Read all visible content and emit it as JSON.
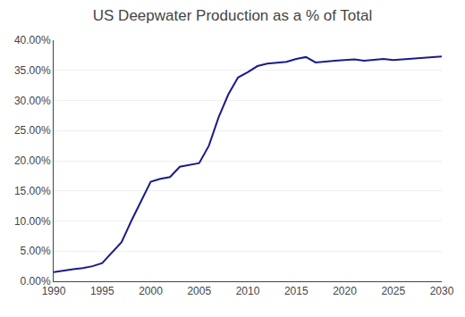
{
  "chart_data": {
    "type": "line",
    "title": "US Deepwater Production as a % of Total",
    "x": [
      1990,
      1991,
      1992,
      1993,
      1994,
      1995,
      1996,
      1997,
      1998,
      1999,
      2000,
      2001,
      2002,
      2003,
      2004,
      2005,
      2006,
      2007,
      2008,
      2009,
      2010,
      2011,
      2012,
      2013,
      2014,
      2015,
      2016,
      2017,
      2018,
      2019,
      2020,
      2021,
      2022,
      2023,
      2024,
      2025,
      2026,
      2027,
      2028,
      2029,
      2030
    ],
    "values": [
      0.015,
      0.018,
      0.02,
      0.022,
      0.025,
      0.03,
      0.048,
      0.065,
      0.1,
      0.133,
      0.165,
      0.17,
      0.173,
      0.19,
      0.193,
      0.196,
      0.225,
      0.272,
      0.31,
      0.338,
      0.347,
      0.357,
      0.361,
      0.363,
      0.364,
      0.369,
      0.372,
      0.363,
      0.365,
      0.366,
      0.367,
      0.368,
      0.366,
      0.367,
      0.369,
      0.367,
      0.368,
      0.37,
      0.371,
      0.372,
      0.373
    ],
    "color": "#1a1a8c",
    "xlim": [
      1990,
      2030
    ],
    "xticks": [
      1990,
      1995,
      2000,
      2005,
      2010,
      2015,
      2020,
      2025,
      2030
    ],
    "ylim": [
      0.0,
      0.4
    ],
    "yticks": [
      {
        "value": 0.0,
        "label": "0.00%"
      },
      {
        "value": 0.05,
        "label": "5.00%"
      },
      {
        "value": 0.1,
        "label": "10.00%"
      },
      {
        "value": 0.15,
        "label": "15.00%"
      },
      {
        "value": 0.2,
        "label": "20.00%"
      },
      {
        "value": 0.25,
        "label": "25.00%"
      },
      {
        "value": 0.3,
        "label": "30.00%"
      },
      {
        "value": 0.35,
        "label": "35.00%"
      },
      {
        "value": 0.4,
        "label": "40.00%"
      }
    ],
    "grid": "y"
  }
}
